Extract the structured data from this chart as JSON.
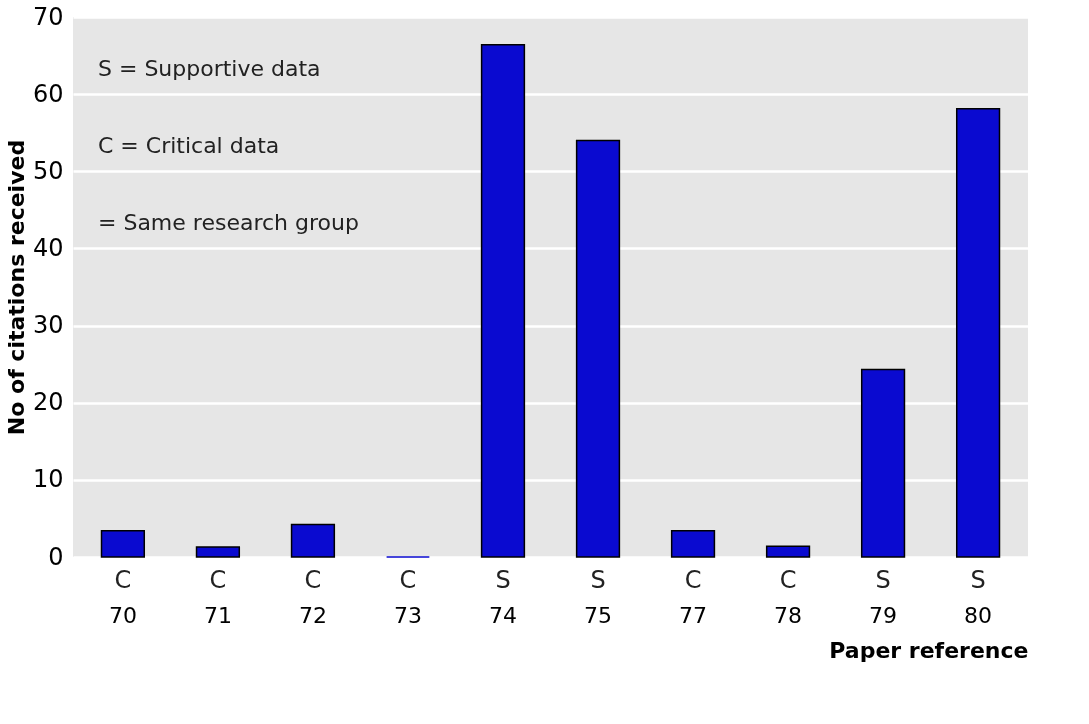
{
  "chart_data": {
    "type": "bar",
    "xlabel": "Paper reference",
    "ylabel": "No of citations received",
    "categories": [
      "70",
      "71",
      "72",
      "73",
      "74",
      "75",
      "77",
      "78",
      "79",
      "80"
    ],
    "values": [
      3.4,
      1.3,
      4.2,
      0,
      66.4,
      54,
      3.4,
      1.4,
      24.3,
      58.1
    ],
    "color": "#0a0ad0",
    "ylim": [
      0,
      70
    ],
    "yticks": [
      0,
      10,
      20,
      30,
      40,
      50,
      60,
      70
    ],
    "grid": "y",
    "annotations": [
      "S = Supportive data",
      "C = Critical data",
      "= Same research group",
      "C",
      "C",
      "C",
      "C",
      "S",
      "S",
      "C",
      "C",
      "S",
      "S"
    ]
  }
}
